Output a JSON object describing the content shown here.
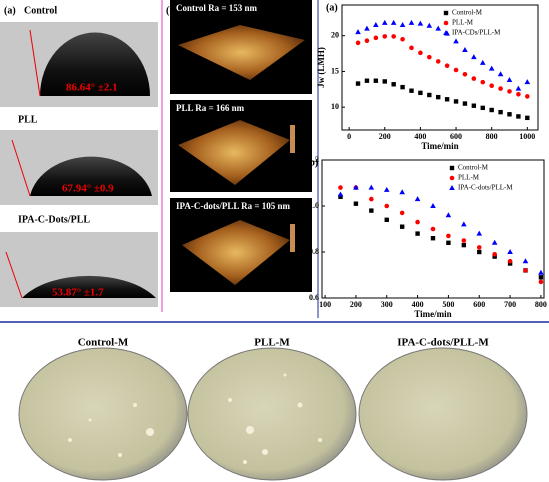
{
  "contact_angle": {
    "label": "(a)",
    "samples": [
      {
        "name": "Control",
        "angle": "86.64° ±2.1"
      },
      {
        "name": "PLL",
        "angle": "67.94° ±0.9"
      },
      {
        "name": "IPA-C-Dots/PLL",
        "angle": "53.87° ±1.7"
      }
    ]
  },
  "afm": {
    "label": "(b)",
    "images": [
      "Control Ra = 153 nm",
      "PLL Ra = 166 nm",
      "IPA-C-dots/PLL Ra = 105 nm"
    ]
  },
  "dishes": [
    "Control-M",
    "PLL-M",
    "IPA-C-dots/PLL-M"
  ],
  "chart_data": [
    {
      "type": "scatter",
      "label": "(a)",
      "x_label": "Time/min",
      "y_label": "Jw (LMH)",
      "xlim": [
        -40,
        1060
      ],
      "ylim": [
        6.8,
        24.3
      ],
      "xticks": [
        0,
        200,
        400,
        600,
        800,
        1000
      ],
      "yticks": [
        10,
        15,
        20
      ],
      "x": [
        50,
        100,
        150,
        200,
        250,
        300,
        350,
        400,
        450,
        500,
        550,
        600,
        650,
        700,
        750,
        800,
        850,
        900,
        950,
        1000
      ],
      "legend": "upper right",
      "series": [
        {
          "name": "Control-M",
          "color": "#000000",
          "marker": "square",
          "values": [
            13.3,
            13.7,
            13.7,
            13.6,
            13.2,
            12.8,
            12.3,
            12,
            11.7,
            11.4,
            11.1,
            10.8,
            10.5,
            10.2,
            9.9,
            9.6,
            9.3,
            9,
            8.7,
            8.5
          ]
        },
        {
          "name": "PLL-M",
          "color": "#ff0000",
          "marker": "circle",
          "values": [
            19,
            19.3,
            19.7,
            19.9,
            19.9,
            19.5,
            18.3,
            17.6,
            17,
            16.4,
            15.8,
            15.2,
            14.6,
            14,
            13.5,
            13,
            12.6,
            12.2,
            11.8,
            11.5
          ]
        },
        {
          "name": "IPA-CDs/PLL-M",
          "color": "#0000ff",
          "marker": "triangle",
          "values": [
            20.5,
            21,
            21.5,
            21.8,
            21.8,
            21.5,
            21.8,
            21.7,
            21.4,
            21,
            20.3,
            19.2,
            18,
            17,
            16.2,
            15.4,
            14.6,
            13.8,
            12.6,
            13.5
          ]
        }
      ]
    },
    {
      "type": "scatter",
      "label": "(b)",
      "x_label": "Time/min",
      "y_label": "Jw/Jw0",
      "xlim": [
        90,
        810
      ],
      "ylim": [
        0.6,
        1.2
      ],
      "xticks": [
        100,
        200,
        300,
        400,
        500,
        600,
        700,
        800
      ],
      "yticks": [
        {
          "value": 0.6,
          "label": "0.6"
        },
        {
          "value": 0.8,
          "label": "0.8"
        },
        {
          "value": 1.0,
          "label": "1.0"
        },
        {
          "value": 1.2,
          "label": "1.2"
        }
      ],
      "x": [
        150,
        200,
        250,
        300,
        350,
        400,
        450,
        500,
        550,
        600,
        650,
        700,
        750,
        800
      ],
      "legend": "upper right",
      "series": [
        {
          "name": "Control-M",
          "color": "#000000",
          "marker": "square",
          "values": [
            1.04,
            1.01,
            0.98,
            0.94,
            0.91,
            0.88,
            0.86,
            0.84,
            0.83,
            0.8,
            0.78,
            0.75,
            0.72,
            0.69
          ]
        },
        {
          "name": "PLL-M",
          "color": "#ff0000",
          "marker": "circle",
          "values": [
            1.08,
            1.08,
            1.03,
            1.0,
            0.97,
            0.93,
            0.9,
            0.87,
            0.85,
            0.82,
            0.79,
            0.76,
            0.72,
            0.67
          ]
        },
        {
          "name": "IPA-C-dots/PLL-M",
          "color": "#0000ff",
          "marker": "triangle",
          "values": [
            1.05,
            1.08,
            1.08,
            1.07,
            1.06,
            1.03,
            1.0,
            0.96,
            0.92,
            0.88,
            0.84,
            0.8,
            0.76,
            0.71
          ]
        }
      ]
    }
  ]
}
